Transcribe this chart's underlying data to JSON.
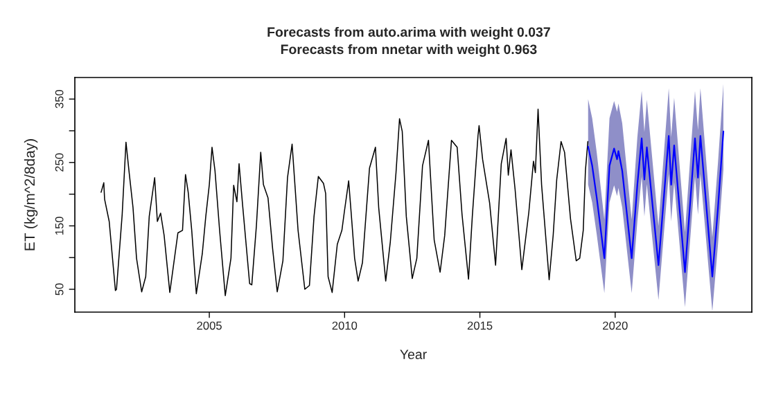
{
  "chart_data": {
    "type": "line",
    "title": "Forecasts from auto.arima with weight 0.037",
    "subtitle": "Forecasts from nnetar with weight 0.963",
    "xlabel": "Year",
    "ylabel": "ET (kg/m^2/8day)",
    "xlim": [
      2000.03,
      2025.05
    ],
    "ylim": [
      14,
      384
    ],
    "xticks": [
      2005,
      2010,
      2015,
      2020
    ],
    "yticks": [
      50,
      {
        "value": 100,
        "label": null
      },
      150,
      {
        "value": 200,
        "label": null
      },
      250,
      {
        "value": 300,
        "label": null
      },
      350
    ],
    "grid": false,
    "legend": false,
    "marker": "none",
    "line_style": "solid",
    "series": [
      {
        "color": "#000000",
        "x": [
          2001.0,
          2001.1,
          2001.13,
          2001.3,
          2001.53,
          2001.57,
          2001.78,
          2001.92,
          2002.03,
          2002.18,
          2002.31,
          2002.5,
          2002.65,
          2002.78,
          2002.98,
          2003.08,
          2003.2,
          2003.33,
          2003.54,
          2003.84,
          2004.01,
          2004.12,
          2004.22,
          2004.35,
          2004.52,
          2004.74,
          2004.87,
          2005.0,
          2005.1,
          2005.21,
          2005.38,
          2005.59,
          2005.8,
          2005.9,
          2006.02,
          2006.1,
          2006.23,
          2006.49,
          2006.57,
          2006.74,
          2006.9,
          2007.0,
          2007.17,
          2007.34,
          2007.51,
          2007.72,
          2007.89,
          2008.06,
          2008.28,
          2008.53,
          2008.7,
          2008.87,
          2009.03,
          2009.22,
          2009.3,
          2009.39,
          2009.54,
          2009.73,
          2009.9,
          2009.99,
          2010.15,
          2010.24,
          2010.37,
          2010.5,
          2010.66,
          2010.92,
          2011.14,
          2011.26,
          2011.52,
          2011.69,
          2011.9,
          2012.03,
          2012.13,
          2012.28,
          2012.5,
          2012.67,
          2012.88,
          2013.1,
          2013.22,
          2013.31,
          2013.53,
          2013.7,
          2013.95,
          2014.16,
          2014.34,
          2014.58,
          2014.72,
          2014.93,
          2014.97,
          2015.1,
          2015.36,
          2015.58,
          2015.79,
          2015.97,
          2016.05,
          2016.15,
          2016.3,
          2016.55,
          2016.81,
          2016.98,
          2017.05,
          2017.15,
          2017.2,
          2017.28,
          2017.56,
          2017.71,
          2017.84,
          2018.0,
          2018.13,
          2018.35,
          2018.56,
          2018.69,
          2018.82,
          2018.9,
          2018.99
        ],
        "values": [
          203,
          218,
          192,
          157,
          48,
          50,
          168,
          282,
          237,
          179,
          99,
          46,
          70,
          165,
          226,
          157,
          170,
          135,
          45,
          139,
          143,
          231,
          203,
          143,
          43,
          106,
          165,
          215,
          274,
          237,
          143,
          40,
          99,
          214,
          188,
          248,
          183,
          59,
          57,
          150,
          266,
          215,
          194,
          114,
          46,
          95,
          226,
          279,
          143,
          50,
          56,
          165,
          228,
          217,
          201,
          70,
          45,
          121,
          143,
          172,
          221,
          172,
          99,
          63,
          92,
          241,
          274,
          179,
          63,
          125,
          234,
          319,
          299,
          165,
          67,
          99,
          245,
          285,
          194,
          128,
          77,
          135,
          285,
          274,
          168,
          66,
          165,
          292,
          308,
          255,
          186,
          88,
          248,
          288,
          230,
          270,
          208,
          81,
          172,
          252,
          234,
          334,
          288,
          215,
          65,
          136,
          223,
          283,
          266,
          161,
          95,
          99,
          143,
          237,
          283
        ]
      },
      {
        "color": "#0000ff",
        "x": [
          2019.0,
          2019.15,
          2019.32,
          2019.6,
          2019.79,
          2019.96,
          2020.07,
          2020.12,
          2020.26,
          2020.61,
          2020.82,
          2020.98,
          2021.08,
          2021.17,
          2021.6,
          2021.98,
          2022.07,
          2022.18,
          2022.58,
          2022.95,
          2023.06,
          2023.15,
          2023.59,
          2023.8,
          2024.0
        ],
        "values": [
          275,
          245,
          194,
          99,
          245,
          272,
          255,
          268,
          237,
          99,
          215,
          288,
          223,
          274,
          88,
          292,
          215,
          277,
          77,
          288,
          226,
          292,
          70,
          179,
          299
        ],
        "upper": [
          350,
          320,
          265,
          160,
          320,
          347,
          330,
          343,
          312,
          160,
          290,
          363,
          298,
          349,
          150,
          367,
          290,
          352,
          140,
          363,
          301,
          367,
          132,
          250,
          374
        ],
        "lower": [
          215,
          187,
          136,
          44,
          187,
          214,
          197,
          210,
          179,
          44,
          157,
          228,
          165,
          216,
          33,
          232,
          157,
          219,
          22,
          228,
          168,
          232,
          15,
          121,
          239
        ]
      }
    ]
  }
}
